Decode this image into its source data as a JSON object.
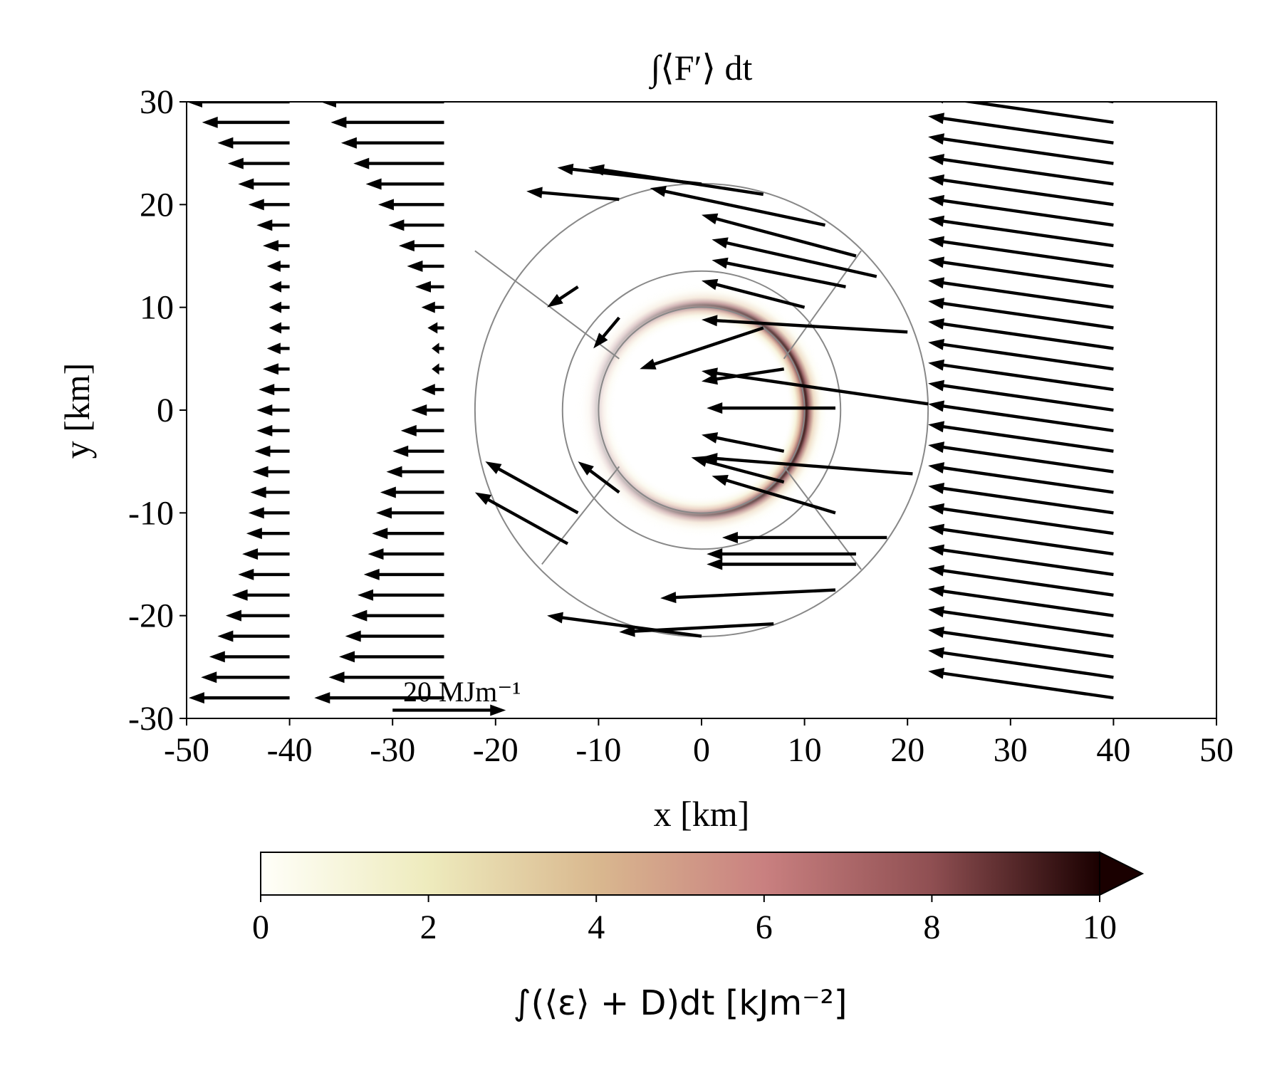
{
  "chart_data": {
    "type": "quiver",
    "title": "∫⟨F′⟩ dt",
    "xlabel": "x [km]",
    "ylabel": "y [km]",
    "xlim": [
      -50,
      50
    ],
    "ylim": [
      -30,
      30
    ],
    "xticks": [
      "-50",
      "-40",
      "-30",
      "-20",
      "-10",
      "0",
      "10",
      "20",
      "30",
      "40",
      "50"
    ],
    "yticks": [
      "30",
      "20",
      "10",
      "0",
      "-10",
      "-20",
      "-30"
    ],
    "quiver_key_label": "20 MJm⁻¹",
    "quiver_key_value": 20,
    "grid": false,
    "colorbar": {
      "label": "∫(⟨ε⟩ + D)dt [kJm⁻²]",
      "range": [
        0,
        10
      ],
      "ticks": [
        "0",
        "2",
        "4",
        "6",
        "8",
        "10"
      ],
      "extend": "max",
      "colors": [
        "#fffff9",
        "#eeebbd",
        "#d9b88f",
        "#c98080",
        "#8f4f52",
        "#1a0000"
      ]
    },
    "circles_radius_km": [
      10,
      13.5,
      22
    ],
    "heat_ring": {
      "radius_km": 10.2,
      "peak": 10,
      "side": "right"
    },
    "columns": [
      {
        "x_tail": -40,
        "dx": [
          -10,
          -8.5,
          -7,
          -6,
          -5,
          -4,
          -3.2,
          -2.6,
          -2.2,
          -2,
          -2,
          -2,
          -2.2,
          -2.6,
          -3,
          -3.2,
          -3.2,
          -3.4,
          -3.6,
          -3.8,
          -4,
          -4.2,
          -4.6,
          -5,
          -5.6,
          -6.2,
          -7,
          -7.8,
          -8.6,
          -9.8
        ]
      },
      {
        "x_tail": -25,
        "dx": [
          -12,
          -11,
          -10,
          -8.8,
          -7.6,
          -6.4,
          -5.4,
          -4.4,
          -3.6,
          -2.8,
          -2.2,
          -1.6,
          -1.2,
          -1.2,
          -2.2,
          -3.2,
          -4.2,
          -5,
          -5.6,
          -6.2,
          -6.6,
          -7,
          -7.4,
          -7.8,
          -8.4,
          -9,
          -9.6,
          -10.2,
          -11.2,
          -12.6
        ]
      },
      {
        "x_tail": 40,
        "dy": 2.6,
        "dx": -18
      }
    ],
    "inner_arrows": [
      {
        "x": 6,
        "y": 21,
        "dx": -17,
        "dy": 2.6
      },
      {
        "x": 0,
        "y": 22,
        "dx": -14,
        "dy": 1.6
      },
      {
        "x": -8,
        "y": 20.5,
        "dx": -9,
        "dy": 0.8
      },
      {
        "x": 12,
        "y": 18,
        "dx": -17,
        "dy": 3.6
      },
      {
        "x": 15,
        "y": 15,
        "dx": -15,
        "dy": 4
      },
      {
        "x": 17,
        "y": 13,
        "dx": -16,
        "dy": 3.6
      },
      {
        "x": 14,
        "y": 12,
        "dx": -13,
        "dy": 2.6
      },
      {
        "x": 10,
        "y": 10,
        "dx": -10,
        "dy": 2.6
      },
      {
        "x": 20,
        "y": 7.6,
        "dx": -20,
        "dy": 1.2
      },
      {
        "x": 6,
        "y": 8,
        "dx": -12,
        "dy": -4
      },
      {
        "x": 8,
        "y": 4,
        "dx": -8,
        "dy": -1.2
      },
      {
        "x": 22,
        "y": 0.6,
        "dx": -22,
        "dy": 3.2
      },
      {
        "x": 13,
        "y": 0.2,
        "dx": -12.5,
        "dy": 0
      },
      {
        "x": 20.5,
        "y": -6.2,
        "dx": -20.5,
        "dy": 1.6
      },
      {
        "x": 8,
        "y": -4,
        "dx": -8,
        "dy": 1.6
      },
      {
        "x": 8,
        "y": -7,
        "dx": -9,
        "dy": 2.4
      },
      {
        "x": 18,
        "y": -12.4,
        "dx": -16,
        "dy": 0
      },
      {
        "x": 15,
        "y": -14,
        "dx": -14.5,
        "dy": 0
      },
      {
        "x": 15,
        "y": -15,
        "dx": -14.5,
        "dy": 0
      },
      {
        "x": 13,
        "y": -10,
        "dx": -12,
        "dy": 3.6
      },
      {
        "x": 13,
        "y": -17.5,
        "dx": -17,
        "dy": -0.8
      },
      {
        "x": 7,
        "y": -20.8,
        "dx": -15,
        "dy": -0.8
      },
      {
        "x": 0,
        "y": -22,
        "dx": -15,
        "dy": 2
      },
      {
        "x": -13,
        "y": -13,
        "dx": -9,
        "dy": 5
      },
      {
        "x": -12,
        "y": -10,
        "dx": -9,
        "dy": 5
      },
      {
        "x": -8,
        "y": -8,
        "dx": -4,
        "dy": 3
      },
      {
        "x": -12,
        "y": 12,
        "dx": -3,
        "dy": -2
      },
      {
        "x": -8,
        "y": 9,
        "dx": -2.5,
        "dy": -3
      }
    ]
  }
}
